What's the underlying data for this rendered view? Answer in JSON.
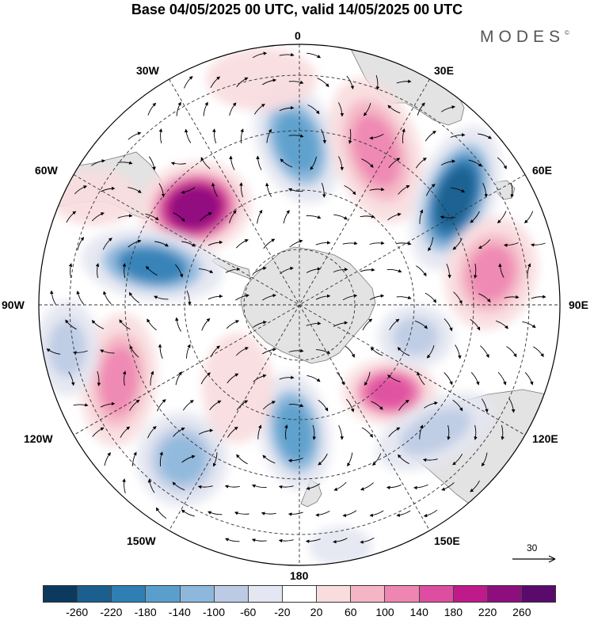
{
  "title": "Base 04/05/2025 00 UTC, valid 14/05/2025 00 UTC",
  "brand": "MODES",
  "brand_mark": "©",
  "longitude_labels": {
    "lon_0": "0",
    "lon_30e": "30E",
    "lon_60e": "60E",
    "lon_90e": "90E",
    "lon_120e": "120E",
    "lon_150e": "150E",
    "lon_180": "180",
    "lon_150w": "150W",
    "lon_120w": "120W",
    "lon_90w": "90W",
    "lon_60w": "60W",
    "lon_30w": "30W"
  },
  "reference_vector": {
    "label": "30"
  },
  "colorbar": {
    "ticks": [
      "-260",
      "-220",
      "-180",
      "-140",
      "-100",
      "-60",
      "-20",
      "20",
      "60",
      "100",
      "140",
      "180",
      "220",
      "260"
    ],
    "colors": [
      "#0b3a5c",
      "#1a5f8e",
      "#2f7fb5",
      "#5a9fcc",
      "#8db8dc",
      "#bccbe4",
      "#e4e6f1",
      "#ffffff",
      "#f8dcde",
      "#f4b6c4",
      "#ef86b2",
      "#de4ea0",
      "#bf1a8a",
      "#8e0e7e",
      "#5a0a6a"
    ]
  },
  "colors": {
    "land": "#e3e3e3",
    "coast": "#777777",
    "grid": "#333333"
  }
}
